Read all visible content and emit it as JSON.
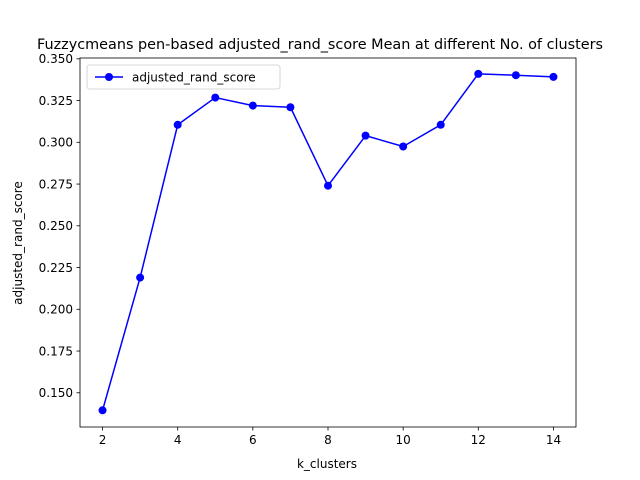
{
  "chart_data": {
    "type": "line",
    "title": "Fuzzycmeans pen-based adjusted_rand_score Mean at different No. of clusters",
    "xlabel": "k_clusters",
    "ylabel": "adjusted_rand_score",
    "x": [
      2,
      3,
      4,
      5,
      6,
      7,
      8,
      9,
      10,
      11,
      12,
      13,
      14
    ],
    "series": [
      {
        "name": "adjusted_rand_score",
        "color": "#0000ff",
        "marker": "circle",
        "values": [
          0.1395,
          0.219,
          0.3105,
          0.3268,
          0.322,
          0.321,
          0.274,
          0.304,
          0.2975,
          0.3105,
          0.341,
          0.3402,
          0.3392
        ]
      }
    ],
    "xlim": [
      1.4,
      14.6
    ],
    "ylim": [
      0.1295,
      0.3505
    ],
    "xticks": [
      2,
      4,
      6,
      8,
      10,
      12,
      14
    ],
    "yticks": [
      0.15,
      0.175,
      0.2,
      0.225,
      0.25,
      0.275,
      0.3,
      0.325,
      0.35
    ],
    "ytick_labels": [
      "0.150",
      "0.175",
      "0.200",
      "0.225",
      "0.250",
      "0.275",
      "0.300",
      "0.325",
      "0.350"
    ],
    "grid": false,
    "legend": {
      "placement": "top-left",
      "entries": [
        "adjusted_rand_score"
      ]
    }
  }
}
